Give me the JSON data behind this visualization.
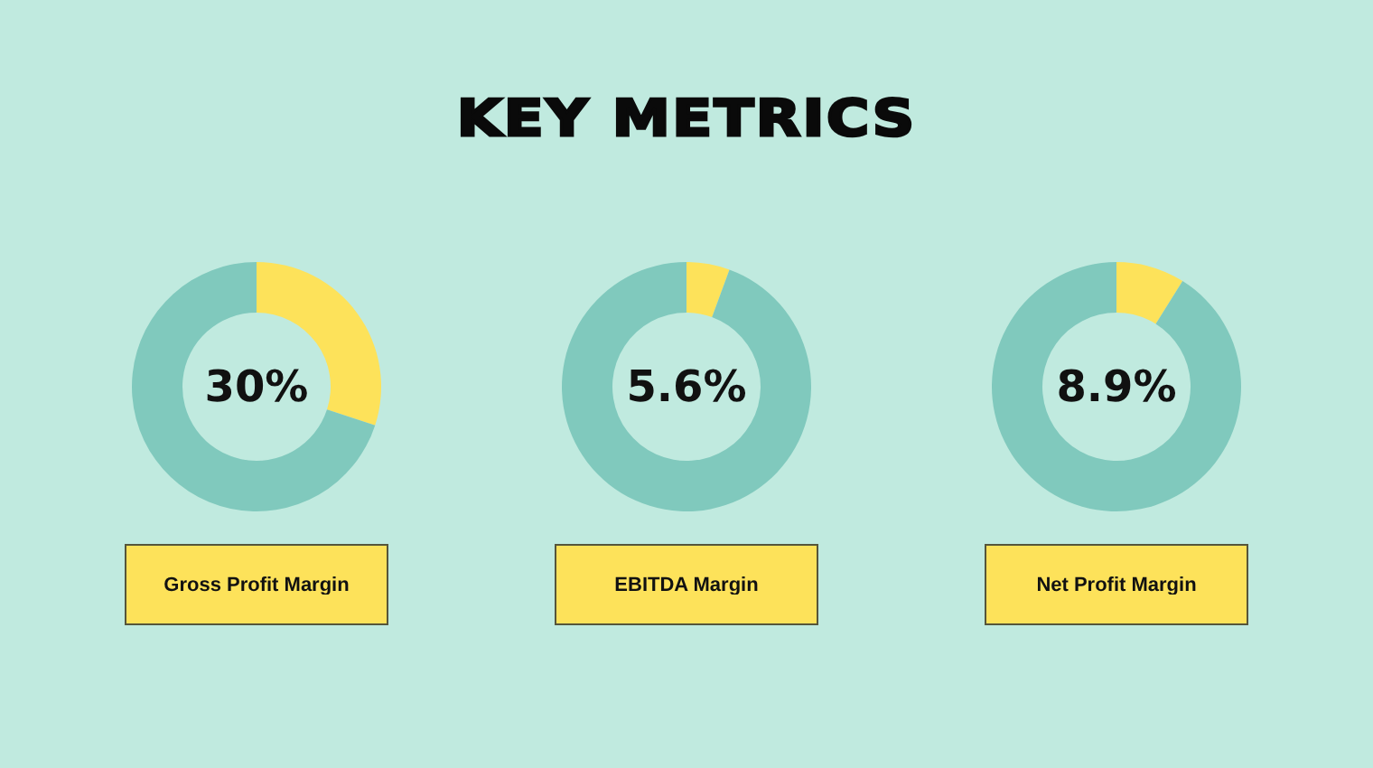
{
  "chart_data": [
    {
      "type": "other",
      "title": "KEY METRICS"
    },
    {
      "type": "donut",
      "title": "Gross Profit Margin",
      "categories": [
        null,
        null
      ],
      "values": [
        30,
        70
      ],
      "colors": [
        "#fde25a",
        "#80c9bd"
      ],
      "annotations": [
        "30%"
      ]
    },
    {
      "type": "donut",
      "title": "EBITDA Margin",
      "categories": [
        null,
        null
      ],
      "values": [
        5.6,
        94.4
      ],
      "colors": [
        "#fde25a",
        "#80c9bd"
      ],
      "annotations": [
        "5.6%"
      ]
    },
    {
      "type": "donut",
      "title": "Net Profit Margin",
      "categories": [
        null,
        null
      ],
      "values": [
        8.9,
        91.1
      ],
      "colors": [
        "#fde25a",
        "#80c9bd"
      ],
      "annotations": [
        "8.9%"
      ]
    }
  ]
}
